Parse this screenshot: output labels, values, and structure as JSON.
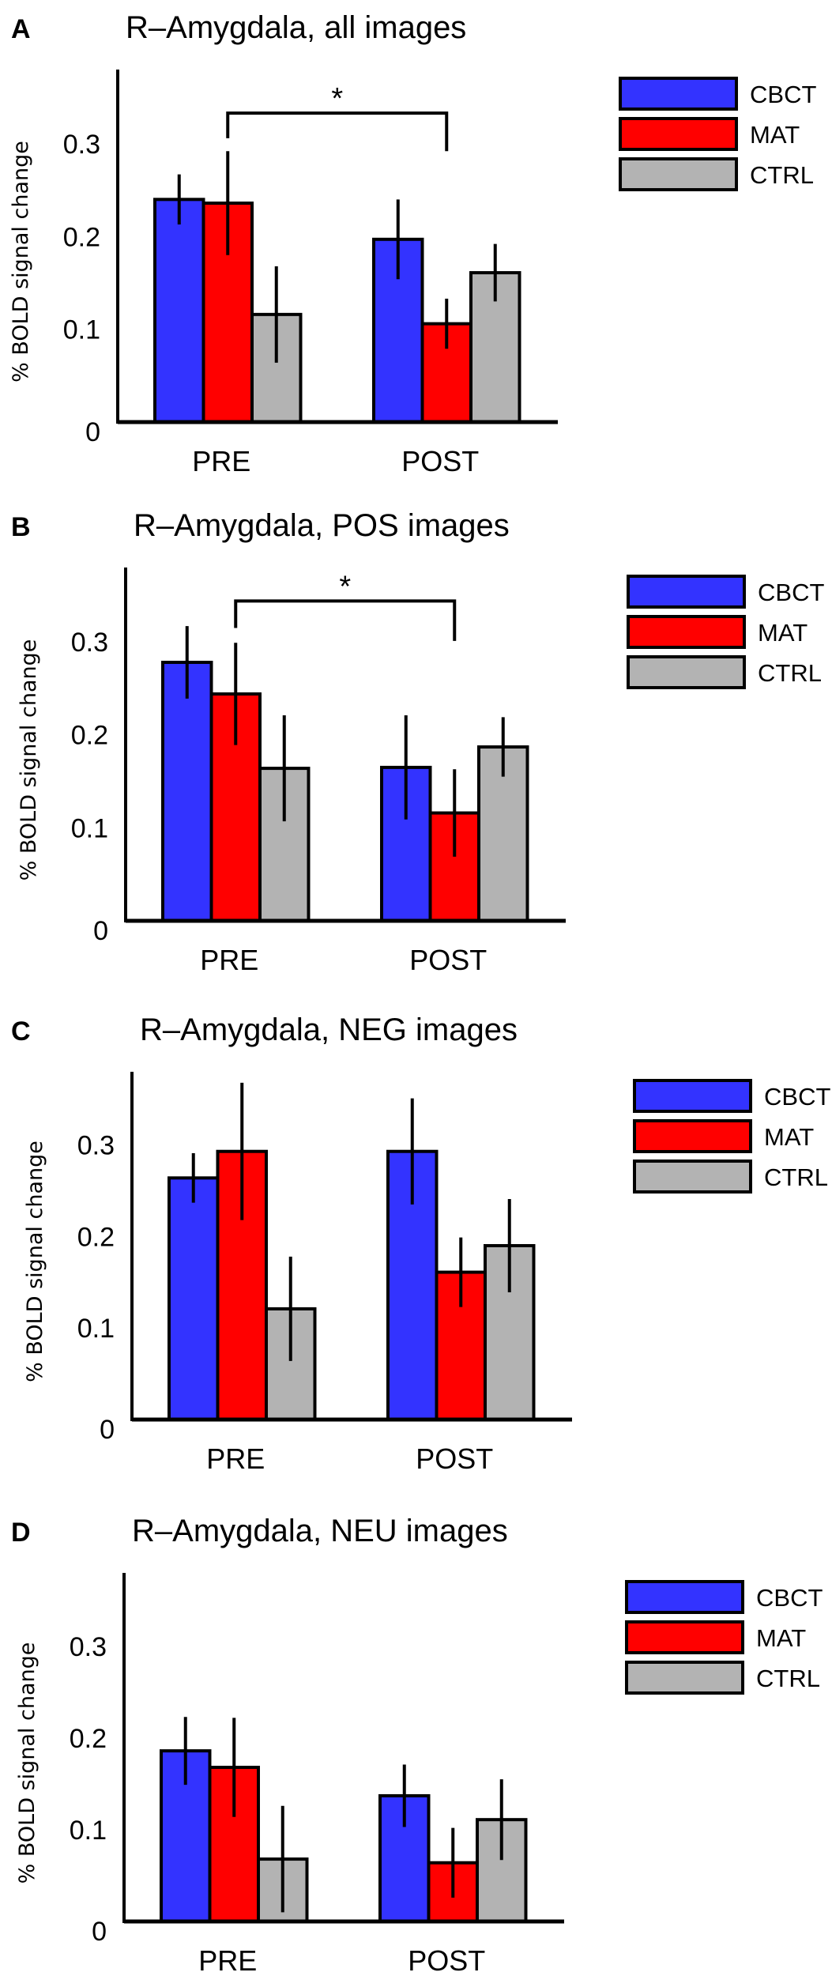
{
  "chart_data": [
    {
      "type": "bar",
      "panel_label": "A",
      "title": "R–Amygdala, all images",
      "ylabel": "% BOLD signal change",
      "xlabel": "",
      "categories": [
        "PRE",
        "POST"
      ],
      "yticks": [
        "0",
        "0.1",
        "0.2",
        "0.3"
      ],
      "ytick_values": [
        0,
        0.1,
        0.2,
        0.3
      ],
      "ylim": [
        0,
        0.38
      ],
      "legend": "top-right",
      "series": [
        {
          "name": "CBCT",
          "color": "#3333ff",
          "values": [
            0.24,
            0.197
          ],
          "errors": [
            0.027,
            0.043
          ]
        },
        {
          "name": "MAT",
          "color": "#ff0000",
          "values": [
            0.236,
            0.106
          ],
          "errors": [
            0.056,
            0.027
          ]
        },
        {
          "name": "CTRL",
          "color": "#b3b3b3",
          "values": [
            0.116,
            0.161
          ],
          "errors": [
            0.052,
            0.031
          ]
        }
      ],
      "annotations": [
        {
          "text": "*",
          "from": "PRE MAT",
          "to": "POST MAT",
          "level": 0.333,
          "left_end": 0.306,
          "right_end": 0.292
        }
      ]
    },
    {
      "type": "bar",
      "panel_label": "B",
      "title": "R–Amygdala, POS images",
      "ylabel": "% BOLD signal change",
      "xlabel": "",
      "categories": [
        "PRE",
        "POST"
      ],
      "yticks": [
        "0",
        "0.1",
        "0.2",
        "0.3"
      ],
      "ytick_values": [
        0,
        0.1,
        0.2,
        0.3
      ],
      "ylim": [
        0,
        0.38
      ],
      "legend": "top-right",
      "series": [
        {
          "name": "CBCT",
          "color": "#3333ff",
          "values": [
            0.278,
            0.165
          ],
          "errors": [
            0.039,
            0.056
          ]
        },
        {
          "name": "MAT",
          "color": "#ff0000",
          "values": [
            0.244,
            0.116
          ],
          "errors": [
            0.055,
            0.047
          ]
        },
        {
          "name": "CTRL",
          "color": "#b3b3b3",
          "values": [
            0.164,
            0.187
          ],
          "errors": [
            0.057,
            0.032
          ]
        }
      ],
      "annotations": [
        {
          "text": "*",
          "from": "PRE MAT",
          "to": "POST MAT",
          "level": 0.344,
          "left_end": 0.315,
          "right_end": 0.301
        }
      ]
    },
    {
      "type": "bar",
      "panel_label": "C",
      "title": "R–Amygdala, NEG images",
      "ylabel": "% BOLD signal change",
      "xlabel": "",
      "categories": [
        "PRE",
        "POST"
      ],
      "yticks": [
        "0",
        "0.1",
        "0.2",
        "0.3"
      ],
      "ytick_values": [
        0,
        0.1,
        0.2,
        0.3
      ],
      "ylim": [
        0,
        0.38
      ],
      "legend": "top-right",
      "series": [
        {
          "name": "CBCT",
          "color": "#3333ff",
          "values": [
            0.264,
            0.293
          ],
          "errors": [
            0.027,
            0.058
          ]
        },
        {
          "name": "MAT",
          "color": "#ff0000",
          "values": [
            0.293,
            0.161
          ],
          "errors": [
            0.075,
            0.038
          ]
        },
        {
          "name": "CTRL",
          "color": "#b3b3b3",
          "values": [
            0.121,
            0.19
          ],
          "errors": [
            0.057,
            0.051
          ]
        }
      ],
      "annotations": []
    },
    {
      "type": "bar",
      "panel_label": "D",
      "title": "R–Amygdala, NEU images",
      "ylabel": "% BOLD signal change",
      "xlabel": "",
      "categories": [
        "PRE",
        "POST"
      ],
      "yticks": [
        "0",
        "0.1",
        "0.2",
        "0.3"
      ],
      "ytick_values": [
        0,
        0.1,
        0.2,
        0.3
      ],
      "ylim": [
        0,
        0.38
      ],
      "legend": "top-right",
      "series": [
        {
          "name": "CBCT",
          "color": "#3333ff",
          "values": [
            0.186,
            0.137
          ],
          "errors": [
            0.037,
            0.034
          ]
        },
        {
          "name": "MAT",
          "color": "#ff0000",
          "values": [
            0.168,
            0.064
          ],
          "errors": [
            0.054,
            0.038
          ]
        },
        {
          "name": "CTRL",
          "color": "#b3b3b3",
          "values": [
            0.068,
            0.111
          ],
          "errors": [
            0.058,
            0.044
          ]
        }
      ],
      "annotations": []
    }
  ]
}
